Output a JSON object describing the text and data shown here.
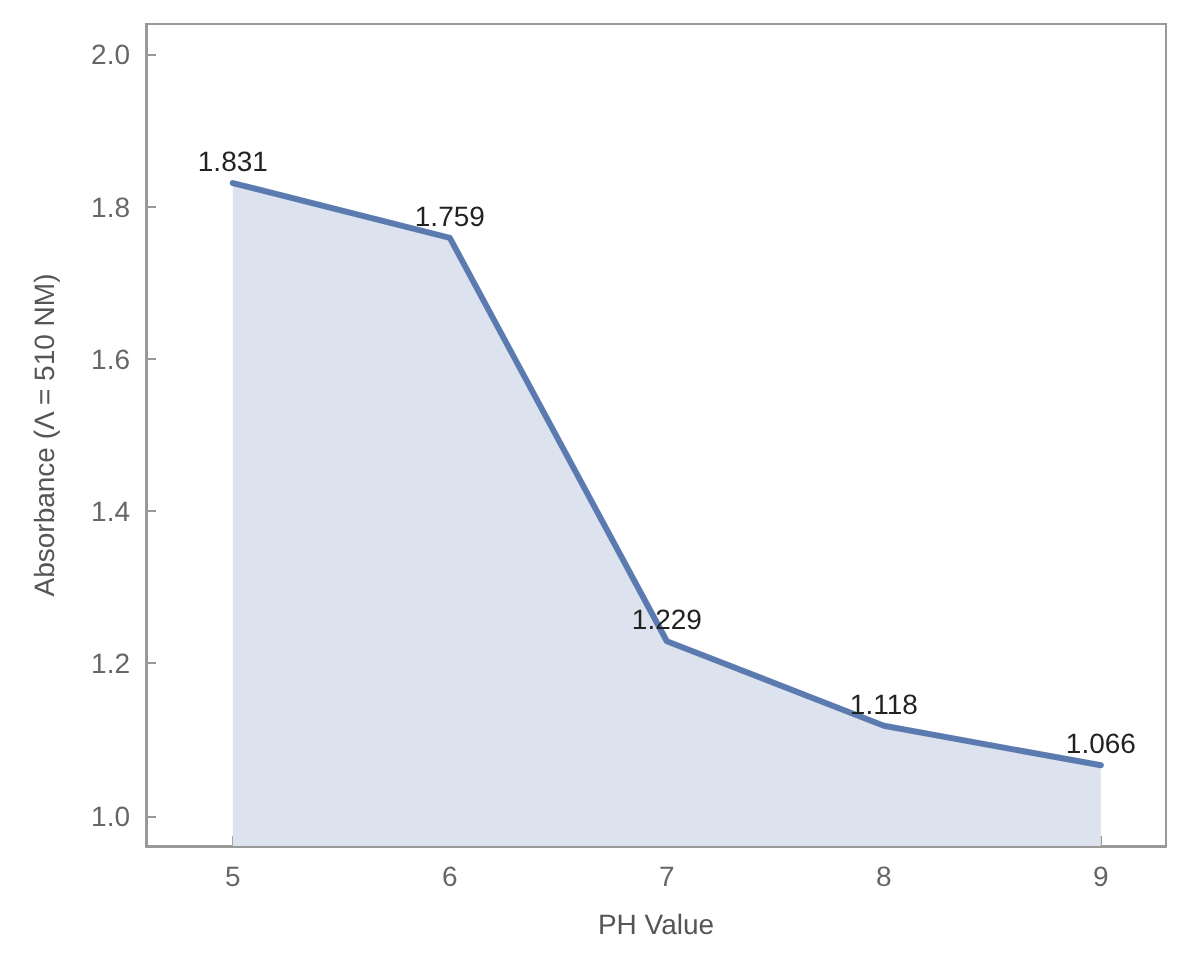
{
  "chart_data": {
    "type": "area",
    "xlabel": "PH Value",
    "ylabel": "Absorbance (Λ = 510 NM)",
    "x": [
      5,
      6,
      7,
      8,
      9
    ],
    "series": [
      {
        "color": "#5b7bb0",
        "values": [
          1.831,
          1.759,
          1.229,
          1.118,
          1.066
        ]
      }
    ],
    "data_labels": true,
    "marker": "none",
    "line_style": "solid",
    "grid": false,
    "xlim": [
      4.6,
      9.3
    ],
    "xticks": [
      5,
      6,
      7,
      8,
      9
    ],
    "ylim": [
      0.96,
      2.04
    ],
    "yticks": [
      {
        "value": 1,
        "label": "1.0"
      },
      1.2,
      1.4,
      1.6,
      1.8,
      {
        "value": 2,
        "label": "2.0"
      }
    ]
  }
}
